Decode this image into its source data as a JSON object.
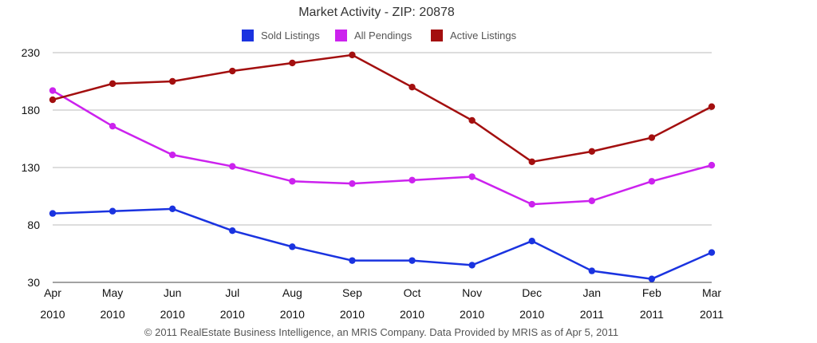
{
  "chart_data": {
    "type": "line",
    "title": "Market Activity - ZIP: 20878",
    "categories": [
      {
        "month": "Apr",
        "year": "2010"
      },
      {
        "month": "May",
        "year": "2010"
      },
      {
        "month": "Jun",
        "year": "2010"
      },
      {
        "month": "Jul",
        "year": "2010"
      },
      {
        "month": "Aug",
        "year": "2010"
      },
      {
        "month": "Sep",
        "year": "2010"
      },
      {
        "month": "Oct",
        "year": "2010"
      },
      {
        "month": "Nov",
        "year": "2010"
      },
      {
        "month": "Dec",
        "year": "2010"
      },
      {
        "month": "Jan",
        "year": "2011"
      },
      {
        "month": "Feb",
        "year": "2011"
      },
      {
        "month": "Mar",
        "year": "2011"
      }
    ],
    "series": [
      {
        "name": "Sold Listings",
        "color": "#1a33e0",
        "values": [
          90,
          92,
          94,
          75,
          61,
          49,
          49,
          45,
          66,
          40,
          33,
          56
        ]
      },
      {
        "name": "All Pendings",
        "color": "#cc22ee",
        "values": [
          197,
          166,
          141,
          131,
          118,
          116,
          119,
          122,
          98,
          101,
          118,
          132
        ]
      },
      {
        "name": "Active Listings",
        "color": "#a30f0f",
        "values": [
          189,
          203,
          205,
          214,
          221,
          228,
          200,
          171,
          135,
          144,
          156,
          183
        ]
      }
    ],
    "yticks": [
      30,
      80,
      130,
      180,
      230
    ],
    "ylim": [
      30,
      230
    ],
    "grid": true,
    "legend": "top-center",
    "xlabel": "",
    "ylabel": ""
  },
  "footer": "© 2011 RealEstate Business Intelligence, an MRIS Company. Data Provided by MRIS as of Apr 5, 2011"
}
